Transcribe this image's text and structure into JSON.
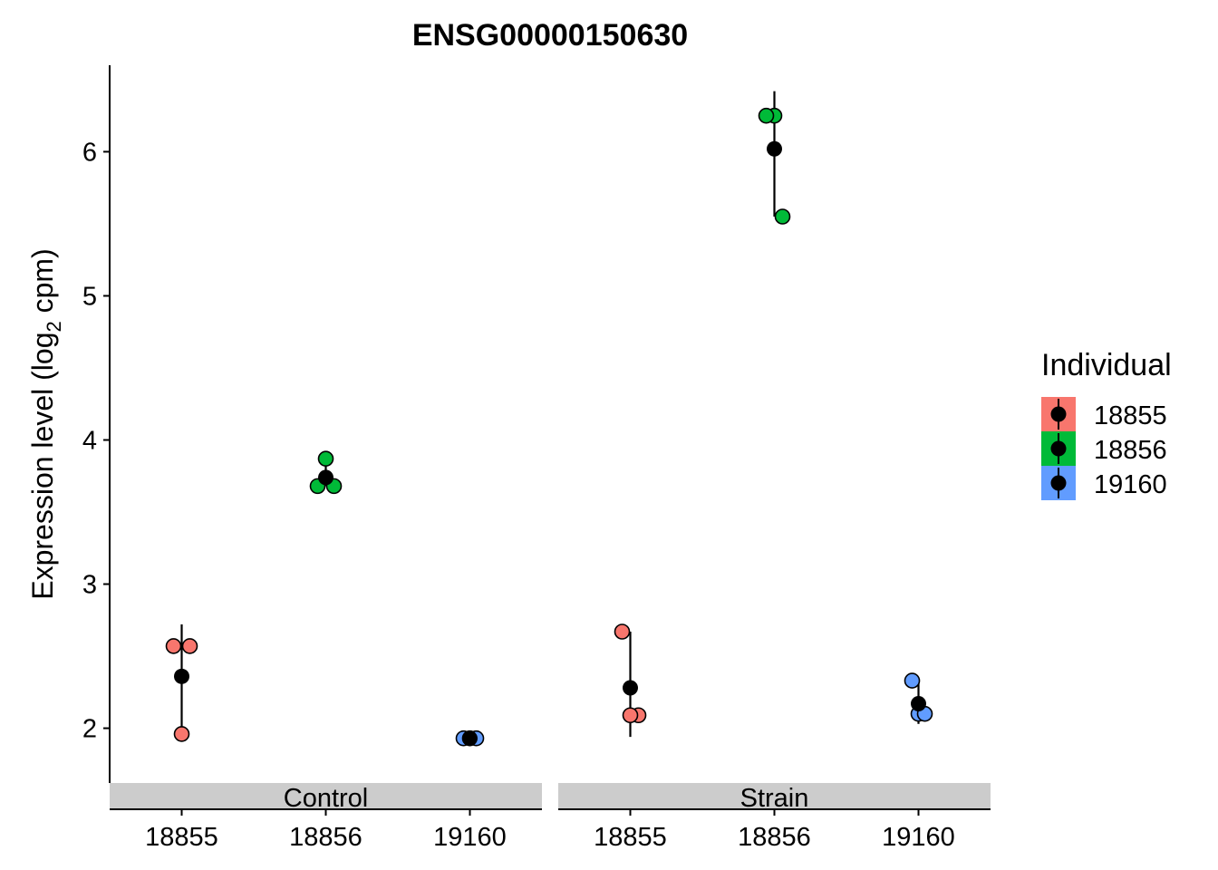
{
  "chart_data": {
    "type": "scatter",
    "title": "ENSG00000150630",
    "ylabel_main": "Expression level (log",
    "ylabel_sub": "2",
    "ylabel_tail": " cpm)",
    "xlabel": "",
    "ylim": [
      1.62,
      6.6
    ],
    "y_ticks": [
      2,
      3,
      4,
      5,
      6
    ],
    "categories": [
      "18855",
      "18856",
      "19160"
    ],
    "legend": {
      "title": "Individual",
      "placement": "right",
      "entries": [
        {
          "label": "18855",
          "color": "#F8766D"
        },
        {
          "label": "18856",
          "color": "#00BA38"
        },
        {
          "label": "19160",
          "color": "#619CFF"
        }
      ]
    },
    "panels": [
      {
        "name": "Control",
        "groups": [
          {
            "individual": "18855",
            "color": "#F8766D",
            "points": [
              2.57,
              2.57,
              1.96
            ],
            "mean": 2.36,
            "range": [
              1.96,
              2.72
            ]
          },
          {
            "individual": "18856",
            "color": "#00BA38",
            "points": [
              3.87,
              3.68,
              3.68
            ],
            "mean": 3.74,
            "range": [
              3.68,
              3.87
            ]
          },
          {
            "individual": "19160",
            "color": "#619CFF",
            "points": [
              1.93,
              1.93,
              1.93
            ],
            "mean": 1.93,
            "range": [
              1.92,
              1.94
            ]
          }
        ]
      },
      {
        "name": "Strain",
        "groups": [
          {
            "individual": "18855",
            "color": "#F8766D",
            "points": [
              2.67,
              2.09,
              2.09
            ],
            "mean": 2.28,
            "range": [
              1.94,
              2.67
            ]
          },
          {
            "individual": "18856",
            "color": "#00BA38",
            "points": [
              6.25,
              6.25,
              5.55
            ],
            "mean": 6.02,
            "range": [
              5.55,
              6.42
            ]
          },
          {
            "individual": "19160",
            "color": "#619CFF",
            "points": [
              2.33,
              2.1,
              2.1
            ],
            "mean": 2.17,
            "range": [
              2.03,
              2.33
            ]
          }
        ]
      }
    ]
  }
}
